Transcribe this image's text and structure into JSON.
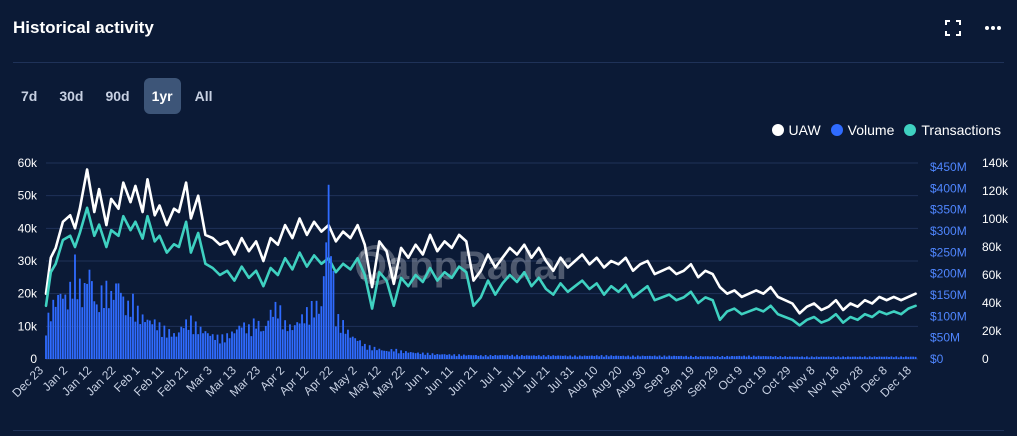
{
  "header": {
    "title": "Historical activity",
    "expand_icon": "expand-icon",
    "more_icon": "more-horizontal-icon"
  },
  "ranges": [
    {
      "label": "7d",
      "active": false
    },
    {
      "label": "30d",
      "active": false
    },
    {
      "label": "90d",
      "active": false
    },
    {
      "label": "1yr",
      "active": true
    },
    {
      "label": "All",
      "active": false
    }
  ],
  "watermark": "DappRadar",
  "colors": {
    "background": "#0b1a36",
    "uaw": "#ffffff",
    "volume": "#2f6bff",
    "transactions": "#3fd1c1",
    "grid": "#1f3258",
    "left_axis": "#ffffff",
    "volume_axis": "#4f86ff",
    "tx_axis": "#ffffff"
  },
  "chart_data": {
    "type": "line",
    "title": "Historical activity",
    "legend": [
      "UAW",
      "Volume",
      "Transactions"
    ],
    "legend_position": "top-right",
    "grid": true,
    "x_tick_labels": [
      "Dec 23",
      "Jan 2",
      "Jan 12",
      "Jan 22",
      "Feb 1",
      "Feb 11",
      "Feb 21",
      "Mar 3",
      "Mar 13",
      "Mar 23",
      "Apr 2",
      "Apr 12",
      "Apr 22",
      "May 2",
      "May 12",
      "May 22",
      "Jun 1",
      "Jun 11",
      "Jun 21",
      "Jul 1",
      "Jul 11",
      "Jul 21",
      "Jul 31",
      "Aug 10",
      "Aug 20",
      "Aug 30",
      "Sep 9",
      "Sep 19",
      "Sep 29",
      "Oct 9",
      "Oct 19",
      "Oct 29",
      "Nov 8",
      "Nov 18",
      "Nov 28",
      "Dec 8",
      "Dec 18"
    ],
    "x_range_days": [
      0,
      361
    ],
    "y_axes": {
      "left": {
        "label": "UAW",
        "ticks": [
          "0",
          "10k",
          "20k",
          "30k",
          "40k",
          "50k",
          "60k"
        ],
        "range": [
          0,
          60000
        ]
      },
      "right_volume": {
        "label": "Volume",
        "ticks": [
          "$0",
          "$50M",
          "$100M",
          "$150M",
          "$200M",
          "$250M",
          "$300M",
          "$350M",
          "$400M",
          "$450M"
        ],
        "range": [
          0,
          450000000
        ]
      },
      "right_transactions": {
        "label": "Transactions",
        "ticks": [
          "0",
          "20k",
          "40k",
          "60k",
          "80k",
          "100k",
          "120k",
          "140k"
        ],
        "range": [
          0,
          140000
        ]
      }
    },
    "series": [
      {
        "name": "UAW",
        "axis": "left",
        "days": [
          0,
          2,
          4,
          7,
          10,
          12,
          14,
          17,
          20,
          22,
          25,
          27,
          30,
          32,
          35,
          37,
          40,
          42,
          45,
          47,
          50,
          53,
          55,
          58,
          60,
          63,
          66,
          69,
          72,
          75,
          78,
          81,
          84,
          87,
          90,
          93,
          96,
          99,
          102,
          105,
          108,
          111,
          114,
          117,
          120,
          123,
          126,
          129,
          132,
          135,
          138,
          141,
          144,
          147,
          150,
          153,
          156,
          159,
          162,
          165,
          168,
          171,
          174,
          177,
          180,
          183,
          186,
          189,
          192,
          195,
          198,
          201,
          204,
          207,
          210,
          213,
          216,
          219,
          222,
          225,
          228,
          231,
          234,
          237,
          240,
          243,
          246,
          249,
          252,
          255,
          258,
          261,
          264,
          267,
          270,
          273,
          276,
          279,
          282,
          285,
          288,
          291,
          294,
          297,
          300,
          303,
          306,
          309,
          312,
          315,
          318,
          321,
          324,
          327,
          330,
          333,
          336,
          339,
          342,
          345,
          348,
          351,
          354,
          357,
          360
        ],
        "values": [
          20000,
          31000,
          34000,
          42000,
          44000,
          40000,
          46000,
          58000,
          45000,
          52000,
          41000,
          49000,
          46000,
          54000,
          48000,
          53000,
          45000,
          55000,
          44000,
          47000,
          41000,
          46000,
          45000,
          54000,
          43000,
          50000,
          38000,
          37000,
          35000,
          36000,
          32000,
          37000,
          33000,
          36000,
          30000,
          37000,
          35000,
          41000,
          37000,
          43000,
          38000,
          42000,
          39000,
          41000,
          36000,
          39000,
          37000,
          41000,
          35000,
          22000,
          36000,
          33000,
          23000,
          34000,
          31000,
          35000,
          32000,
          38000,
          33000,
          36000,
          34000,
          38000,
          36000,
          24000,
          27000,
          32000,
          28000,
          31000,
          34000,
          32000,
          35000,
          31000,
          34000,
          30000,
          27000,
          31000,
          28000,
          30000,
          32000,
          29000,
          31000,
          28000,
          30000,
          29000,
          31000,
          27000,
          29000,
          30000,
          26000,
          27000,
          28000,
          26000,
          27000,
          29000,
          25000,
          27000,
          26000,
          22000,
          20000,
          21000,
          19000,
          20000,
          21000,
          20000,
          22000,
          19000,
          18000,
          17000,
          14000,
          16000,
          17000,
          15000,
          16000,
          18000,
          15000,
          17000,
          16000,
          18000,
          17000,
          19000,
          18000,
          19000,
          18000,
          19000,
          20000
        ],
        "color": "#ffffff"
      },
      {
        "name": "Transactions",
        "axis": "right_transactions",
        "days": [
          0,
          2,
          4,
          7,
          10,
          12,
          14,
          17,
          20,
          22,
          25,
          27,
          30,
          32,
          35,
          37,
          40,
          42,
          45,
          47,
          50,
          53,
          55,
          58,
          60,
          63,
          66,
          69,
          72,
          75,
          78,
          81,
          84,
          87,
          90,
          93,
          96,
          99,
          102,
          105,
          108,
          111,
          114,
          117,
          120,
          123,
          126,
          129,
          132,
          135,
          138,
          141,
          144,
          147,
          150,
          153,
          156,
          159,
          162,
          165,
          168,
          171,
          174,
          177,
          180,
          183,
          186,
          189,
          192,
          195,
          198,
          201,
          204,
          207,
          210,
          213,
          216,
          219,
          222,
          225,
          228,
          231,
          234,
          237,
          240,
          243,
          246,
          249,
          252,
          255,
          258,
          261,
          264,
          267,
          270,
          273,
          276,
          279,
          282,
          285,
          288,
          291,
          294,
          297,
          300,
          303,
          306,
          309,
          312,
          315,
          318,
          321,
          324,
          327,
          330,
          333,
          336,
          339,
          342,
          345,
          348,
          351,
          354,
          357,
          360
        ],
        "values": [
          38000,
          62000,
          68000,
          85000,
          88000,
          80000,
          90000,
          108000,
          88000,
          96000,
          80000,
          92000,
          88000,
          102000,
          92000,
          98000,
          86000,
          102000,
          84000,
          88000,
          76000,
          82000,
          80000,
          98000,
          76000,
          90000,
          68000,
          65000,
          60000,
          63000,
          56000,
          66000,
          58000,
          63000,
          52000,
          65000,
          60000,
          72000,
          64000,
          76000,
          66000,
          74000,
          68000,
          72000,
          62000,
          68000,
          64000,
          72000,
          60000,
          36000,
          62000,
          56000,
          38000,
          58000,
          52000,
          60000,
          55000,
          65000,
          56000,
          62000,
          58000,
          66000,
          62000,
          38000,
          44000,
          56000,
          46000,
          54000,
          60000,
          55000,
          62000,
          52000,
          58000,
          50000,
          46000,
          54000,
          48000,
          52000,
          56000,
          50000,
          54000,
          46000,
          52000,
          48000,
          53000,
          44000,
          48000,
          52000,
          42000,
          44000,
          46000,
          42000,
          44000,
          48000,
          40000,
          44000,
          42000,
          28000,
          34000,
          36000,
          32000,
          34000,
          36000,
          34000,
          38000,
          32000,
          30000,
          28000,
          24000,
          28000,
          30000,
          26000,
          28000,
          32000,
          26000,
          30000,
          28000,
          32000,
          30000,
          34000,
          32000,
          34000,
          32000,
          36000,
          38000
        ],
        "color": "#3fd1c1"
      },
      {
        "name": "Volume",
        "axis": "right_volume",
        "type": "bar",
        "days": [
          0,
          3,
          6,
          9,
          12,
          15,
          18,
          21,
          24,
          27,
          30,
          33,
          36,
          39,
          42,
          45,
          48,
          51,
          54,
          57,
          60,
          63,
          66,
          69,
          72,
          75,
          78,
          81,
          84,
          87,
          90,
          93,
          96,
          99,
          102,
          105,
          108,
          111,
          114,
          117,
          120,
          123,
          126,
          129,
          132,
          135,
          138,
          141,
          144,
          147,
          150,
          153,
          156,
          159,
          162,
          165,
          168,
          171,
          174,
          177,
          180,
          190,
          200,
          210,
          220,
          230,
          240,
          250,
          260,
          270,
          280,
          290,
          300,
          310,
          320,
          330,
          340,
          350,
          360
        ],
        "values": [
          90000000,
          140000000,
          170000000,
          150000000,
          240000000,
          160000000,
          230000000,
          130000000,
          190000000,
          160000000,
          200000000,
          130000000,
          150000000,
          110000000,
          100000000,
          95000000,
          80000000,
          70000000,
          60000000,
          90000000,
          100000000,
          80000000,
          70000000,
          60000000,
          55000000,
          60000000,
          70000000,
          90000000,
          80000000,
          100000000,
          70000000,
          120000000,
          140000000,
          90000000,
          80000000,
          100000000,
          120000000,
          140000000,
          130000000,
          400000000,
          110000000,
          90000000,
          60000000,
          50000000,
          35000000,
          30000000,
          25000000,
          20000000,
          25000000,
          20000000,
          18000000,
          16000000,
          15000000,
          14000000,
          12000000,
          12000000,
          11000000,
          11000000,
          10000000,
          10000000,
          9000000,
          10000000,
          9000000,
          9000000,
          8000000,
          9000000,
          8000000,
          8000000,
          8000000,
          7000000,
          7000000,
          8000000,
          7000000,
          6000000,
          6000000,
          6000000,
          6000000,
          6000000,
          6000000
        ],
        "color": "#2f6bff"
      }
    ]
  }
}
